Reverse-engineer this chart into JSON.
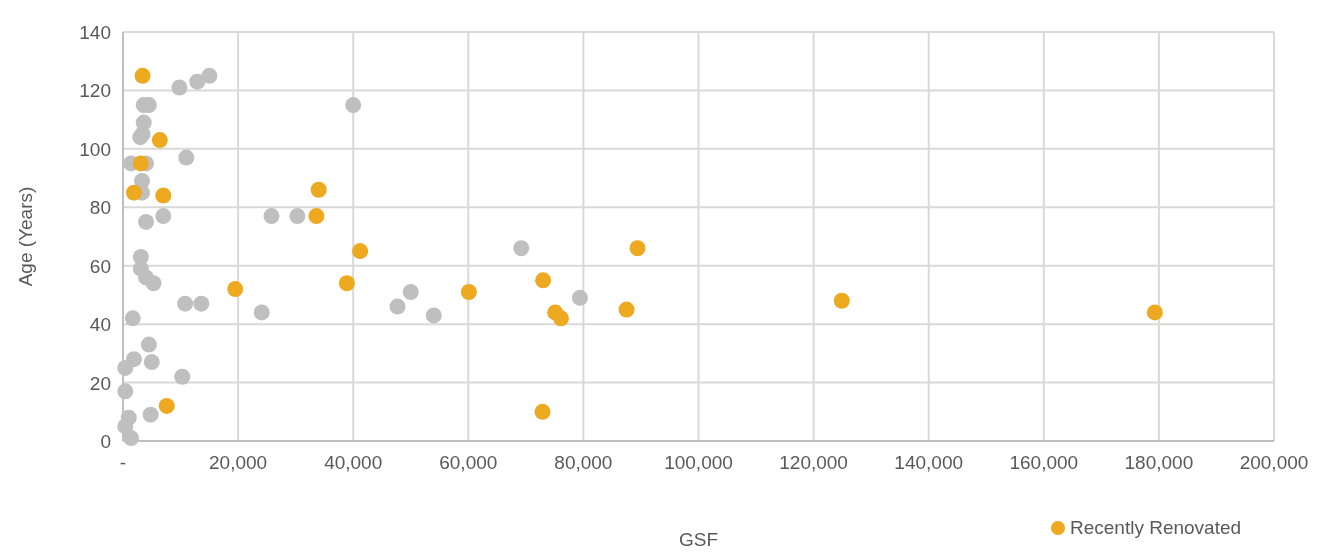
{
  "chart_data": {
    "type": "scatter",
    "xlabel": "GSF",
    "ylabel": "Age (Years)",
    "xlim": [
      0,
      200000
    ],
    "xticks": [
      {
        "value": 0,
        "label": "-"
      },
      {
        "value": 20000,
        "label": "20,000"
      },
      {
        "value": 40000,
        "label": "40,000"
      },
      {
        "value": 60000,
        "label": "60,000"
      },
      {
        "value": 80000,
        "label": "80,000"
      },
      {
        "value": 100000,
        "label": "100,000"
      },
      {
        "value": 120000,
        "label": "120,000"
      },
      {
        "value": 140000,
        "label": "140,000"
      },
      {
        "value": 160000,
        "label": "160,000"
      },
      {
        "value": 180000,
        "label": "180,000"
      },
      {
        "value": 200000,
        "label": "200,000"
      }
    ],
    "ylim": [
      0,
      140
    ],
    "yticks": [
      0,
      20,
      40,
      60,
      80,
      100,
      120,
      140
    ],
    "grid": true,
    "legend": "bottom right",
    "marker": "circle",
    "series": [
      {
        "color": "#bfbfbf",
        "x": [
          9800,
          12900,
          15000,
          40000,
          4500,
          3600,
          3600,
          3000,
          3400,
          11000,
          1400,
          4000,
          3300,
          3300,
          7000,
          4000,
          25800,
          30300,
          3100,
          3100,
          4000,
          5300,
          10800,
          13600,
          1700,
          24100,
          47700,
          50000,
          54000,
          69200,
          79400,
          4500,
          1900,
          5000,
          400,
          10300,
          400,
          1000,
          400,
          4800,
          1400
        ],
        "values": [
          121,
          123,
          125,
          115,
          115,
          115,
          109,
          104,
          105,
          97,
          95,
          95,
          89,
          85,
          77,
          75,
          77,
          77,
          63,
          59,
          56,
          54,
          47,
          47,
          42,
          44,
          46,
          51,
          43,
          66,
          49,
          33,
          28,
          27,
          25,
          22,
          17,
          8,
          5,
          9,
          1
        ]
      },
      {
        "name": "Recently Renovated",
        "color": "#eda920",
        "x": [
          3400,
          6400,
          3100,
          1900,
          7000,
          7600,
          19500,
          34000,
          33600,
          41200,
          38900,
          60100,
          73000,
          75100,
          76100,
          87500,
          89400,
          72900,
          124900,
          179300
        ],
        "values": [
          125,
          103,
          95,
          85,
          84,
          12,
          52,
          86,
          77,
          65,
          54,
          51,
          55,
          44,
          42,
          45,
          66,
          10,
          48,
          44
        ]
      }
    ]
  }
}
